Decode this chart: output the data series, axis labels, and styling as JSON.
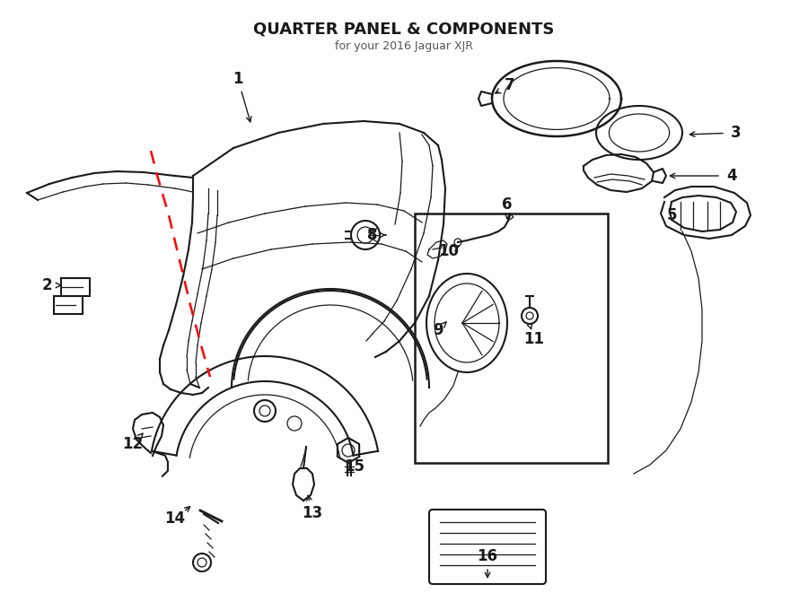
{
  "title": "QUARTER PANEL & COMPONENTS",
  "subtitle": "for your 2016 Jaguar XJR",
  "bg_color": "#ffffff",
  "line_color": "#1a1a1a",
  "red_color": "#ff0000",
  "figsize": [
    9.0,
    6.61
  ],
  "dpi": 100
}
